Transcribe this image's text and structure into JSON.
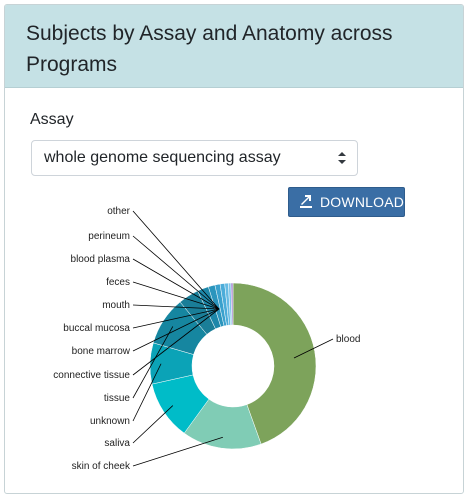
{
  "header": {
    "title": "Subjects by Assay and Anatomy across Programs"
  },
  "filter": {
    "label": "Assay",
    "selected": "whole genome sequencing assay"
  },
  "toolbar": {
    "download_label": "DOWNLOAD"
  },
  "chart_data": {
    "type": "pie",
    "subtype": "donut",
    "title": "",
    "slices": [
      {
        "label": "blood",
        "value": 44.5,
        "color": "#7da35b"
      },
      {
        "label": "skin of cheek",
        "value": 15.5,
        "color": "#80ccb5"
      },
      {
        "label": "saliva",
        "value": 11.5,
        "color": "#00bcc8"
      },
      {
        "label": "unknown",
        "value": 8.0,
        "color": "#0ba3b7"
      },
      {
        "label": "tissue",
        "value": 9.5,
        "color": "#1686a0"
      },
      {
        "label": "connective tissue",
        "value": 4.0,
        "color": "#1a7e98"
      },
      {
        "label": "bone marrow",
        "value": 2.2,
        "color": "#1d87a9"
      },
      {
        "label": "buccal mucosa",
        "value": 1.3,
        "color": "#2b95bd"
      },
      {
        "label": "mouth",
        "value": 1.0,
        "color": "#3aa1cd"
      },
      {
        "label": "feces",
        "value": 0.9,
        "color": "#4bacd9"
      },
      {
        "label": "blood plasma",
        "value": 0.7,
        "color": "#66bbe3"
      },
      {
        "label": "perineum",
        "value": 0.5,
        "color": "#7fc6ea"
      },
      {
        "label": "other",
        "value": 0.4,
        "color": "#a98bd0"
      }
    ]
  }
}
